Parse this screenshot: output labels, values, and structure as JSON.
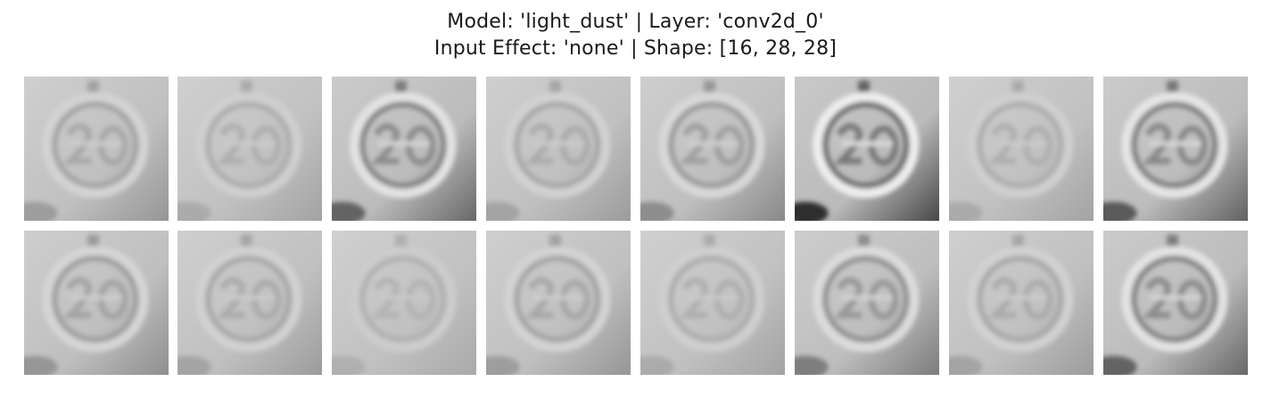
{
  "figure": {
    "title_line1": "Model: 'light_dust' | Layer: 'conv2d_0'",
    "title_line2": "Input Effect: 'none' | Shape: [16, 28, 28]"
  },
  "feature_maps": [
    {
      "index": 0,
      "contrast": 0.35,
      "digits": true,
      "ring": true
    },
    {
      "index": 1,
      "contrast": 0.25,
      "digits": true,
      "ring": true
    },
    {
      "index": 2,
      "contrast": 0.7,
      "digits": true,
      "ring": true
    },
    {
      "index": 3,
      "contrast": 0.3,
      "digits": true,
      "ring": true
    },
    {
      "index": 4,
      "contrast": 0.45,
      "digits": true,
      "ring": true
    },
    {
      "index": 5,
      "contrast": 0.95,
      "digits": true,
      "ring": true
    },
    {
      "index": 6,
      "contrast": 0.25,
      "digits": true,
      "ring": true
    },
    {
      "index": 7,
      "contrast": 0.75,
      "digits": true,
      "ring": true
    },
    {
      "index": 8,
      "contrast": 0.4,
      "digits": true,
      "ring": true
    },
    {
      "index": 9,
      "contrast": 0.3,
      "digits": true,
      "ring": true
    },
    {
      "index": 10,
      "contrast": 0.2,
      "digits": true,
      "ring": true
    },
    {
      "index": 11,
      "contrast": 0.35,
      "digits": true,
      "ring": true
    },
    {
      "index": 12,
      "contrast": 0.25,
      "digits": true,
      "ring": true
    },
    {
      "index": 13,
      "contrast": 0.55,
      "digits": true,
      "ring": true
    },
    {
      "index": 14,
      "contrast": 0.3,
      "digits": true,
      "ring": true
    },
    {
      "index": 15,
      "contrast": 0.7,
      "digits": true,
      "ring": true
    }
  ],
  "colors": {
    "background": "#ffffff",
    "map_base": "#bdbdbd",
    "text": "#1a1a1a"
  }
}
